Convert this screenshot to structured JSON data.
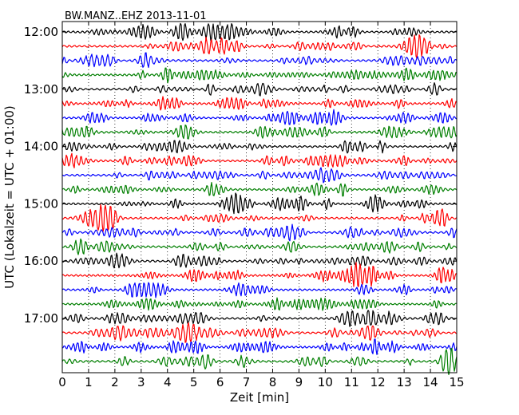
{
  "chart_data": {
    "type": "line",
    "title": "BW.MANZ..EHZ 2013-11-01",
    "xlabel": "Zeit  [min]",
    "ylabel": "UTC (Lokalzeit = UTC + 01:00)",
    "xlim": [
      0,
      15
    ],
    "x_ticks": [
      "0",
      "1",
      "2",
      "3",
      "4",
      "5",
      "6",
      "7",
      "8",
      "9",
      "10",
      "11",
      "12",
      "13",
      "14",
      "15"
    ],
    "y_ticks": [
      "12:00",
      "13:00",
      "14:00",
      "15:00",
      "16:00",
      "17:00"
    ],
    "grid": "vertical dotted",
    "trace_colors": [
      "#000000",
      "#ff0000",
      "#0000ff",
      "#007f00"
    ],
    "trace_start_times": [
      "12:00",
      "12:15",
      "12:30",
      "12:45",
      "13:00",
      "13:15",
      "13:30",
      "13:45",
      "14:00",
      "14:15",
      "14:30",
      "14:45",
      "15:00",
      "15:15",
      "15:30",
      "15:45",
      "16:00",
      "16:15",
      "16:30",
      "16:45",
      "17:00",
      "17:15",
      "17:30",
      "17:45"
    ]
  }
}
